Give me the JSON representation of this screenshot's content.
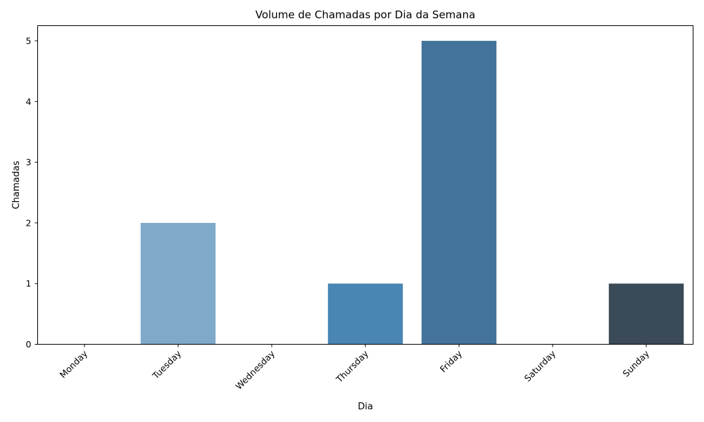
{
  "chart_data": {
    "type": "bar",
    "title": "Volume de Chamadas por Dia da Semana",
    "xlabel": "Dia",
    "ylabel": "Chamadas",
    "categories": [
      "Monday",
      "Tuesday",
      "Wednesday",
      "Thursday",
      "Friday",
      "Saturday",
      "Sunday"
    ],
    "values": [
      0,
      2,
      0,
      1,
      5,
      0,
      1
    ],
    "colors": [
      "#9ecae1",
      "#7ea9c9",
      "#5f90b8",
      "#4a86b4",
      "#43739a",
      "#3b5a72",
      "#3a4a57"
    ],
    "ylim": [
      0,
      5.25
    ],
    "yticks": [
      0,
      1,
      2,
      3,
      4,
      5
    ],
    "grid": false,
    "legend": "none"
  }
}
